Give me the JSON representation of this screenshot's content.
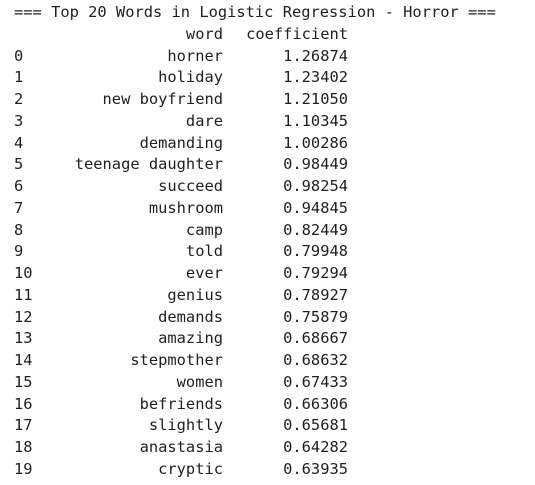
{
  "console": {
    "heading": "=== Top 20 Words in Logistic Regression - Horror ===",
    "columns": {
      "word": "word",
      "coefficient": "coefficient"
    },
    "rows": [
      {
        "index": "0",
        "word": "horner",
        "coefficient": "1.26874"
      },
      {
        "index": "1",
        "word": "holiday",
        "coefficient": "1.23402"
      },
      {
        "index": "2",
        "word": "new boyfriend",
        "coefficient": "1.21050"
      },
      {
        "index": "3",
        "word": "dare",
        "coefficient": "1.10345"
      },
      {
        "index": "4",
        "word": "demanding",
        "coefficient": "1.00286"
      },
      {
        "index": "5",
        "word": "teenage daughter",
        "coefficient": "0.98449"
      },
      {
        "index": "6",
        "word": "succeed",
        "coefficient": "0.98254"
      },
      {
        "index": "7",
        "word": "mushroom",
        "coefficient": "0.94845"
      },
      {
        "index": "8",
        "word": "camp",
        "coefficient": "0.82449"
      },
      {
        "index": "9",
        "word": "told",
        "coefficient": "0.79948"
      },
      {
        "index": "10",
        "word": "ever",
        "coefficient": "0.79294"
      },
      {
        "index": "11",
        "word": "genius",
        "coefficient": "0.78927"
      },
      {
        "index": "12",
        "word": "demands",
        "coefficient": "0.75879"
      },
      {
        "index": "13",
        "word": "amazing",
        "coefficient": "0.68667"
      },
      {
        "index": "14",
        "word": "stepmother",
        "coefficient": "0.68632"
      },
      {
        "index": "15",
        "word": "women",
        "coefficient": "0.67433"
      },
      {
        "index": "16",
        "word": "befriends",
        "coefficient": "0.66306"
      },
      {
        "index": "17",
        "word": "slightly",
        "coefficient": "0.65681"
      },
      {
        "index": "18",
        "word": "anastasia",
        "coefficient": "0.64282"
      },
      {
        "index": "19",
        "word": "cryptic",
        "coefficient": "0.63935"
      }
    ]
  }
}
